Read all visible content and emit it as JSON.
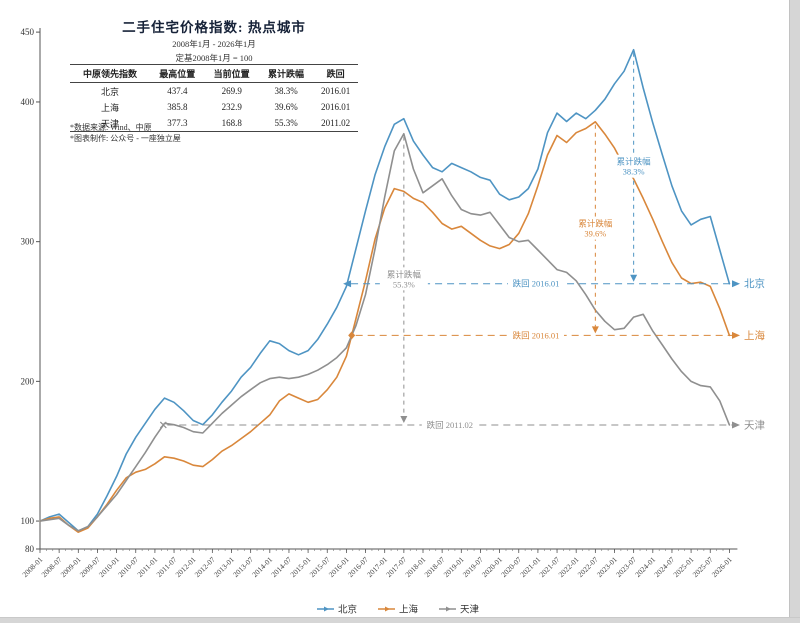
{
  "header": {
    "title": "二手住宅价格指数: 热点城市",
    "subtitle_range": "2008年1月 - 2026年1月",
    "subtitle_base": "定基2008年1月 = 100"
  },
  "table": {
    "headers": [
      "中原领先指数",
      "最高位置",
      "当前位置",
      "累计跌幅",
      "跌回"
    ],
    "rows": [
      [
        "北京",
        "437.4",
        "269.9",
        "38.3%",
        "2016.01"
      ],
      [
        "上海",
        "385.8",
        "232.9",
        "39.6%",
        "2016.01"
      ],
      [
        "天津",
        "377.3",
        "168.8",
        "55.3%",
        "2011.02"
      ]
    ]
  },
  "footnotes": [
    "*数据来源: Wind、中原",
    "*图表制作: 公众号 - 一座独立屋"
  ],
  "legend": [
    {
      "label": "北京",
      "color": "#4e94c3"
    },
    {
      "label": "上海",
      "color": "#d9873b"
    },
    {
      "label": "天津",
      "color": "#8f8f8f"
    }
  ],
  "chart_data": {
    "type": "line",
    "title": "二手住宅价格指数: 热点城市",
    "xlabel": "",
    "ylabel": "",
    "ylim": [
      80,
      450
    ],
    "y_ticks": [
      80,
      100,
      200,
      300,
      400,
      450
    ],
    "grid": false,
    "legend_position": "bottom",
    "x_start": 2008.0,
    "x_end": 2026.0,
    "x_step": 0.25,
    "x_tick_labels": [
      "2008-01",
      "2008-07",
      "2009-01",
      "2009-07",
      "2010-01",
      "2010-07",
      "2011-01",
      "2011-07",
      "2012-01",
      "2012-07",
      "2013-01",
      "2013-07",
      "2014-01",
      "2014-07",
      "2015-01",
      "2015-07",
      "2016-01",
      "2016-07",
      "2017-01",
      "2017-07",
      "2018-01",
      "2018-07",
      "2019-01",
      "2019-07",
      "2020-01",
      "2020-07",
      "2021-01",
      "2021-07",
      "2022-01",
      "2022-07",
      "2023-01",
      "2023-07",
      "2024-01",
      "2024-07",
      "2025-01",
      "2025-07",
      "2026-01"
    ],
    "series": [
      {
        "name": "北京",
        "color": "#4e94c3",
        "values": [
          100,
          103,
          105,
          99,
          93,
          96,
          105,
          118,
          132,
          148,
          160,
          170,
          180,
          188,
          185,
          179,
          172,
          169,
          176,
          185,
          193,
          203,
          210,
          220,
          229,
          227,
          222,
          219,
          222,
          230,
          241,
          253,
          268,
          295,
          322,
          348,
          368,
          384,
          388,
          372,
          362,
          353,
          350,
          356,
          353,
          350,
          346,
          344,
          334,
          330,
          332,
          338,
          352,
          378,
          392,
          386,
          392,
          388,
          394,
          402,
          413,
          422,
          437.4,
          410,
          385,
          362,
          340,
          322,
          312,
          316,
          318,
          294,
          269.9
        ]
      },
      {
        "name": "上海",
        "color": "#d9873b",
        "values": [
          100,
          102,
          103,
          97,
          92,
          95,
          103,
          112,
          122,
          131,
          135,
          137,
          141,
          146,
          145,
          143,
          140,
          139,
          144,
          150,
          154,
          159,
          164,
          170,
          176,
          186,
          191,
          188,
          185,
          187,
          194,
          203,
          218,
          245,
          272,
          302,
          324,
          338,
          336,
          331,
          328,
          321,
          313,
          309,
          311,
          306,
          301,
          297,
          295,
          298,
          306,
          320,
          340,
          362,
          376,
          371,
          378,
          381,
          385.8,
          377,
          367,
          354,
          345,
          331,
          316,
          300,
          285,
          274,
          270,
          271,
          268,
          252,
          232.9
        ]
      },
      {
        "name": "天津",
        "color": "#8f8f8f",
        "values": [
          100,
          101,
          102,
          97,
          93,
          96,
          103,
          111,
          119,
          129,
          139,
          149,
          160,
          170,
          169,
          167,
          164,
          163,
          170,
          177,
          183,
          189,
          194,
          199,
          202,
          203,
          202,
          203,
          205,
          208,
          212,
          217,
          224,
          240,
          262,
          295,
          332,
          365,
          377.3,
          352,
          335,
          340,
          345,
          333,
          323,
          320,
          319,
          321,
          312,
          303,
          300,
          301,
          294,
          287,
          280,
          278,
          272,
          262,
          251,
          243,
          237,
          238,
          246,
          248,
          236,
          226,
          216,
          207,
          200,
          197,
          196,
          186,
          168.8
        ]
      }
    ],
    "annotations": [
      {
        "series": "北京",
        "peak_x": 2023.5,
        "peak_value": 437.4,
        "fallback_level": 269.9,
        "drop_label": "累计跌幅",
        "drop_pct": "38.3%",
        "fallback_label": "跌回 2016.01",
        "fallback_label_x": 2020.95,
        "marker": "arrow"
      },
      {
        "series": "上海",
        "peak_x": 2022.5,
        "peak_value": 385.8,
        "fallback_level": 232.9,
        "drop_label": "累计跌幅",
        "drop_pct": "39.6%",
        "fallback_label": "跌回 2016.01",
        "fallback_label_x": 2020.95,
        "marker": "diamond"
      },
      {
        "series": "天津",
        "peak_x": 2017.5,
        "peak_value": 377.3,
        "fallback_level": 168.8,
        "drop_label": "累计跌幅",
        "drop_pct": "55.3%",
        "fallback_label": "跌回 2011.02",
        "fallback_label_x": 2018.7,
        "marker": "cross"
      }
    ],
    "end_labels": [
      "北京",
      "上海",
      "天津"
    ]
  }
}
